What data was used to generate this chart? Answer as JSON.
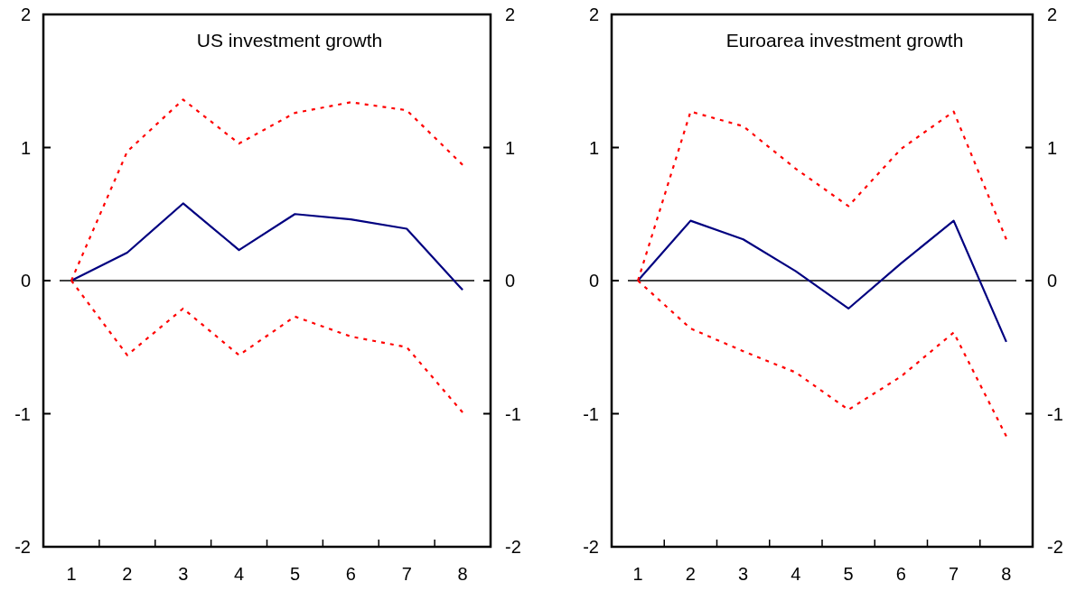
{
  "chart_data": [
    {
      "type": "line",
      "title": "US investment growth",
      "categories": [
        "1",
        "2",
        "3",
        "4",
        "5",
        "6",
        "7",
        "8"
      ],
      "ylim": [
        -2,
        2
      ],
      "yticks": [
        -2,
        -1,
        0,
        1,
        2
      ],
      "y2lim": [
        -2,
        2
      ],
      "y2ticks": [
        -2,
        -1,
        0,
        1,
        2
      ],
      "grid": false,
      "marker": "none",
      "ref_lines": [
        {
          "axis": "y",
          "value": 0,
          "color": "#000000",
          "line_style": "solid"
        }
      ],
      "series": [
        {
          "color": "#000080",
          "line_style": "solid",
          "values": [
            0,
            0.21,
            0.58,
            0.23,
            0.5,
            0.46,
            0.39,
            -0.07
          ]
        },
        {
          "color": "#ff0000",
          "line_style": "dotted",
          "values": [
            0,
            0.97,
            1.36,
            1.03,
            1.26,
            1.34,
            1.28,
            0.87
          ]
        },
        {
          "color": "#ff0000",
          "line_style": "dotted",
          "values": [
            0,
            -0.56,
            -0.21,
            -0.56,
            -0.27,
            -0.42,
            -0.5,
            -0.99
          ]
        }
      ]
    },
    {
      "type": "line",
      "title": "Euroarea investment growth",
      "categories": [
        "1",
        "2",
        "3",
        "4",
        "5",
        "6",
        "7",
        "8"
      ],
      "ylim": [
        -2,
        2
      ],
      "yticks": [
        -2,
        -1,
        0,
        1,
        2
      ],
      "y2lim": [
        -2,
        2
      ],
      "y2ticks": [
        -2,
        -1,
        0,
        1,
        2
      ],
      "grid": false,
      "marker": "none",
      "ref_lines": [
        {
          "axis": "y",
          "value": 0,
          "color": "#000000",
          "line_style": "solid"
        }
      ],
      "series": [
        {
          "color": "#000080",
          "line_style": "solid",
          "values": [
            0,
            0.45,
            0.31,
            0.07,
            -0.21,
            0.13,
            0.45,
            -0.46
          ]
        },
        {
          "color": "#ff0000",
          "line_style": "dotted",
          "values": [
            0,
            1.27,
            1.16,
            0.84,
            0.56,
            0.99,
            1.27,
            0.31
          ]
        },
        {
          "color": "#ff0000",
          "line_style": "dotted",
          "values": [
            0,
            -0.36,
            -0.53,
            -0.69,
            -0.97,
            -0.72,
            -0.39,
            -1.17
          ]
        }
      ]
    }
  ]
}
